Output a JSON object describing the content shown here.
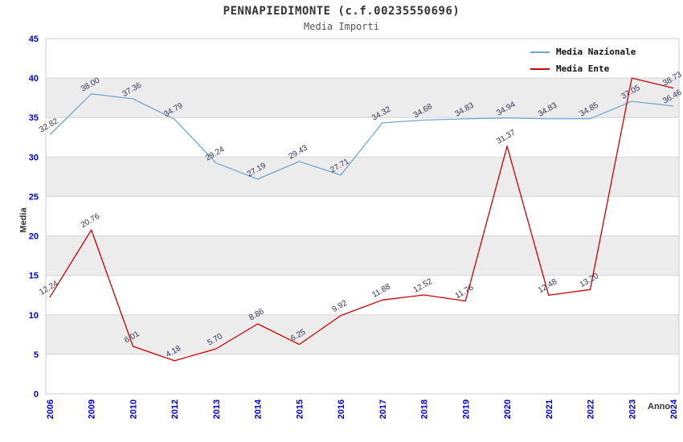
{
  "chart": {
    "title": "PENNAPIEDIMONTE (c.f.00235550696)",
    "subtitle": "Media Importi"
  },
  "chart_data": {
    "type": "line",
    "title": "PENNAPIEDIMONTE (c.f.00235550696)",
    "subtitle": "Media Importi",
    "xlabel": "Anno",
    "ylabel": "Media",
    "ylim": [
      0,
      45
    ],
    "ytick_step": 5,
    "grid": true,
    "legend_position": "top-right",
    "categories": [
      "2006",
      "2009",
      "2010",
      "2012",
      "2013",
      "2014",
      "2015",
      "2016",
      "2017",
      "2018",
      "2019",
      "2020",
      "2021",
      "2022",
      "2023",
      "2024"
    ],
    "series": [
      {
        "name": "Media Nazionale",
        "color": "#6fa8d2",
        "values": [
          32.82,
          38.0,
          37.36,
          34.79,
          29.24,
          27.19,
          29.43,
          27.71,
          34.32,
          34.68,
          34.83,
          34.94,
          34.83,
          34.85,
          37.05,
          36.46
        ],
        "labels": [
          "32.82",
          "38.00",
          "37.36",
          "34.79",
          "29.24",
          "27.19",
          "29.43",
          "27.71",
          "34.32",
          "34.68",
          "34.83",
          "34.94",
          "34.83",
          "34.85",
          "37.05",
          "36.46"
        ]
      },
      {
        "name": "Media Ente",
        "color": "#cc0000",
        "values": [
          12.24,
          20.76,
          6.01,
          4.18,
          5.7,
          8.86,
          6.25,
          9.92,
          11.88,
          12.52,
          11.76,
          31.37,
          12.48,
          13.2,
          40.0,
          38.73
        ],
        "labels": [
          "12.24",
          "20.76",
          "6.01",
          "4.18",
          "5.70",
          "8.86",
          "6.25",
          "9.92",
          "11.88",
          "12.52",
          "11.76",
          "31.37",
          "12.48",
          "13.20",
          "",
          "38.73"
        ]
      }
    ],
    "style": {
      "axis_text_color": "#0000cc",
      "band_color": "#ececec",
      "grid_color": "#d6d6d6",
      "border_color": "#cccccc",
      "point_label_color": "#333355",
      "background": "#ffffff"
    }
  }
}
